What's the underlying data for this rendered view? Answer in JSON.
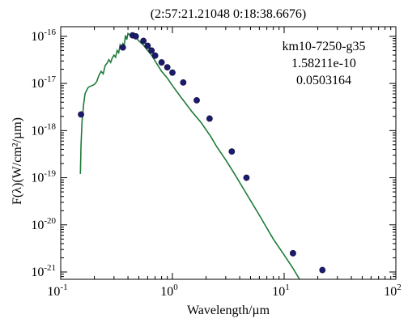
{
  "chart_data": {
    "type": "line",
    "title": "(2:57:21.21048 0:18:38.6676)",
    "xlabel": "Wavelength/µm",
    "ylabel": "F(λ)(W/cm²/µm)",
    "xscale": "log",
    "yscale": "log",
    "xlim": [
      0.1,
      100
    ],
    "ylim": [
      7e-22,
      1.6e-16
    ],
    "grid": false,
    "x_ticks": [
      {
        "value": 0.1,
        "base": "10",
        "exp": "-1"
      },
      {
        "value": 1,
        "base": "10",
        "exp": "0"
      },
      {
        "value": 10,
        "base": "10",
        "exp": "1"
      },
      {
        "value": 100,
        "base": "10",
        "exp": "2"
      }
    ],
    "y_ticks": [
      {
        "value": 1e-21,
        "base": "10",
        "exp": "-21"
      },
      {
        "value": 1e-20,
        "base": "10",
        "exp": "-20"
      },
      {
        "value": 1e-19,
        "base": "10",
        "exp": "-19"
      },
      {
        "value": 1e-18,
        "base": "10",
        "exp": "-18"
      },
      {
        "value": 1e-17,
        "base": "10",
        "exp": "-17"
      },
      {
        "value": 1e-16,
        "base": "10",
        "exp": "-16"
      }
    ],
    "annotations": [
      "km10-7250-g35",
      "1.58211e-10",
      "0.0503164"
    ],
    "colors": {
      "model": "#1f7a3a",
      "photometry": "#1c1c6e",
      "axis": "#000000"
    },
    "series": [
      {
        "kind": "line",
        "x": [
          0.15,
          0.152,
          0.155,
          0.16,
          0.165,
          0.17,
          0.175,
          0.18,
          0.19,
          0.2,
          0.21,
          0.22,
          0.23,
          0.24,
          0.25,
          0.26,
          0.27,
          0.28,
          0.29,
          0.3,
          0.31,
          0.32,
          0.33,
          0.34,
          0.35,
          0.36,
          0.37,
          0.38,
          0.39,
          0.4,
          0.42,
          0.44,
          0.46,
          0.48,
          0.5,
          0.55,
          0.6,
          0.65,
          0.7,
          0.8,
          0.9,
          1.0,
          1.2,
          1.5,
          1.8,
          2.2,
          2.5,
          3.0,
          3.6,
          4.5,
          6.0,
          8.0,
          10.0,
          12.0,
          14.0,
          16.0
        ],
        "y": [
          1.2e-19,
          5e-19,
          1.5e-18,
          3.5e-18,
          6e-18,
          7e-18,
          8e-18,
          8.5e-18,
          9e-18,
          9.5e-18,
          1.1e-17,
          1.5e-17,
          1.8e-17,
          1.6e-17,
          2.4e-17,
          2.7e-17,
          3.2e-17,
          2.8e-17,
          3.5e-17,
          4e-17,
          3.6e-17,
          5e-17,
          4.5e-17,
          6.5e-17,
          5.5e-17,
          7e-17,
          6.5e-17,
          1.05e-16,
          8.5e-17,
          1.15e-16,
          1.05e-16,
          1.1e-16,
          9.5e-17,
          9e-17,
          8e-17,
          6.5e-17,
          5e-17,
          4e-17,
          3e-17,
          1.8e-17,
          1.3e-17,
          9e-18,
          5e-18,
          2.5e-18,
          1.5e-18,
          7.5e-19,
          4.5e-19,
          2.4e-19,
          1.2e-19,
          5e-20,
          1.6e-20,
          5e-21,
          2.3e-21,
          1.2e-21,
          6.5e-22,
          4e-22
        ]
      },
      {
        "kind": "scatter",
        "x": [
          0.152,
          0.36,
          0.44,
          0.47,
          0.55,
          0.6,
          0.65,
          0.7,
          0.8,
          0.9,
          1.0,
          1.25,
          1.65,
          2.15,
          3.4,
          4.6,
          12.0,
          22.0
        ],
        "y": [
          2.2e-18,
          5.8e-17,
          1.05e-16,
          1e-16,
          8e-17,
          6.3e-17,
          5e-17,
          3.9e-17,
          2.8e-17,
          2.2e-17,
          1.7e-17,
          1.05e-17,
          4.4e-18,
          1.8e-18,
          3.6e-19,
          1e-19,
          2.5e-21,
          1.1e-21
        ]
      }
    ]
  }
}
